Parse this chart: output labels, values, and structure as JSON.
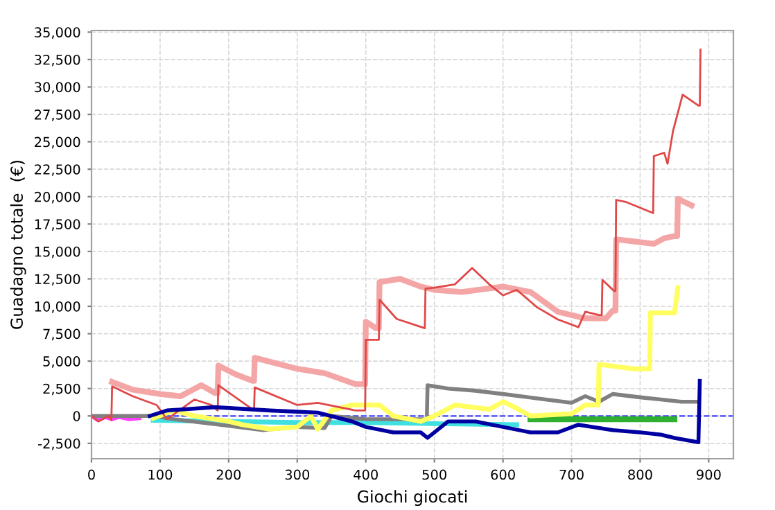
{
  "chart_data": {
    "type": "line",
    "xlabel": "Giochi giocati",
    "ylabel": "Guadagno totale  (€)",
    "xlim": [
      0,
      936
    ],
    "ylim": [
      -3900,
      35150
    ],
    "xticks": [
      0,
      100,
      200,
      300,
      400,
      500,
      600,
      700,
      800,
      900
    ],
    "yticks": [
      {
        "value": -2500,
        "label": "-2,500"
      },
      {
        "value": 0,
        "label": "0"
      },
      {
        "value": 2500,
        "label": "2,500"
      },
      {
        "value": 5000,
        "label": "5,000"
      },
      {
        "value": 7500,
        "label": "7,500"
      },
      {
        "value": 10000,
        "label": "10,000"
      },
      {
        "value": 12500,
        "label": "12,500"
      },
      {
        "value": 15000,
        "label": "15,000"
      },
      {
        "value": 17500,
        "label": "17,500"
      },
      {
        "value": 20000,
        "label": "20,000"
      },
      {
        "value": 22500,
        "label": "22,500"
      },
      {
        "value": 25000,
        "label": "25,000"
      },
      {
        "value": 27500,
        "label": "27,500"
      },
      {
        "value": 30000,
        "label": "30,000"
      },
      {
        "value": 32500,
        "label": "32,500"
      },
      {
        "value": 35000,
        "label": "35,000"
      }
    ],
    "grid": true,
    "legend": false,
    "marker": "none",
    "line_style": "solid",
    "ref_lines": [
      {
        "axis": "y",
        "value": 0,
        "label": null,
        "color": "#4040ff",
        "line_style": "dashed"
      }
    ],
    "series": [
      {
        "color": "#40e0e0",
        "x": [
          90,
          200,
          300,
          400,
          500,
          620
        ],
        "values": [
          -400,
          -500,
          -600,
          -600,
          -700,
          -800
        ]
      },
      {
        "color": "#ff40ff",
        "x": [
          0,
          10,
          20,
          30,
          40,
          55,
          70
        ],
        "values": [
          0,
          -400,
          -100,
          -300,
          -100,
          -300,
          -200
        ]
      },
      {
        "color": "#30b030",
        "x": [
          640,
          700,
          800,
          850
        ],
        "values": [
          -300,
          -300,
          -300,
          -300
        ]
      },
      {
        "color": "#808080",
        "x": [
          0,
          90,
          120,
          200,
          250,
          300,
          340,
          350,
          400,
          489,
          490,
          520,
          560,
          600,
          650,
          700,
          720,
          740,
          760,
          800,
          830,
          860,
          885
        ],
        "values": [
          0,
          0,
          -300,
          -900,
          -1300,
          -1000,
          -1100,
          0,
          -300,
          -300,
          2800,
          2500,
          2300,
          2000,
          1600,
          1200,
          1800,
          1300,
          2000,
          1700,
          1500,
          1300,
          1300
        ]
      },
      {
        "color": "#ffff60",
        "x": [
          90,
          120,
          150,
          200,
          220,
          260,
          300,
          320,
          330,
          350,
          380,
          420,
          440,
          480,
          500,
          530,
          580,
          600,
          620,
          640,
          700,
          720,
          739,
          740,
          790,
          814,
          815,
          850,
          855
        ],
        "values": [
          -200,
          500,
          0,
          -500,
          -800,
          -1200,
          -1000,
          0,
          -1200,
          500,
          1000,
          1000,
          0,
          -500,
          0,
          1000,
          600,
          1300,
          700,
          0,
          200,
          1000,
          1000,
          4700,
          4300,
          4300,
          9400,
          9400,
          11700
        ]
      },
      {
        "color": "#f4a6a6",
        "x": [
          30,
          60,
          100,
          130,
          145,
          160,
          180,
          184,
          185,
          210,
          235,
          237,
          238,
          300,
          340,
          385,
          399,
          400,
          415,
          419,
          420,
          450,
          480,
          500,
          540,
          600,
          640,
          680,
          720,
          750,
          760,
          764,
          765,
          820,
          835,
          850,
          854,
          855,
          875
        ],
        "values": [
          3100,
          2400,
          2000,
          1800,
          2300,
          2800,
          2100,
          2100,
          4600,
          3800,
          3200,
          3200,
          5300,
          4300,
          3900,
          2900,
          2900,
          8600,
          8000,
          8000,
          12200,
          12500,
          11800,
          11500,
          11300,
          11800,
          11300,
          9500,
          8900,
          8900,
          9600,
          9600,
          16100,
          15700,
          16200,
          16400,
          16400,
          19800,
          19200
        ]
      },
      {
        "color": "#e04848",
        "x": [
          0,
          10,
          25,
          29,
          30,
          60,
          95,
          110,
          150,
          175,
          184,
          185,
          235,
          237,
          238,
          300,
          330,
          385,
          399,
          400,
          419,
          420,
          445,
          486,
          487,
          500,
          530,
          555,
          580,
          600,
          620,
          650,
          680,
          710,
          720,
          740,
          744,
          745,
          762,
          764,
          765,
          780,
          819,
          820,
          835,
          840,
          848,
          862,
          885,
          887,
          888
        ],
        "values": [
          0,
          -500,
          0,
          -400,
          2700,
          1800,
          1000,
          -300,
          1500,
          1000,
          500,
          2800,
          600,
          600,
          2600,
          1000,
          1200,
          500,
          500,
          6950,
          6950,
          10600,
          8850,
          8000,
          11600,
          11700,
          12000,
          13500,
          12000,
          11000,
          11500,
          9900,
          8800,
          8100,
          9500,
          9200,
          9200,
          12400,
          11400,
          11400,
          19700,
          19500,
          18500,
          23700,
          24000,
          23000,
          26000,
          29300,
          28300,
          28300,
          33400
        ]
      },
      {
        "color": "#0000a0",
        "x": [
          85,
          110,
          180,
          260,
          330,
          380,
          400,
          440,
          480,
          490,
          520,
          560,
          600,
          640,
          680,
          710,
          760,
          800,
          830,
          850,
          885,
          887
        ],
        "values": [
          0,
          500,
          800,
          500,
          300,
          -500,
          -1000,
          -1500,
          -1500,
          -2000,
          -500,
          -500,
          -1000,
          -1500,
          -1500,
          -800,
          -1300,
          -1500,
          -1700,
          -2000,
          -2400,
          3200
        ]
      }
    ]
  }
}
